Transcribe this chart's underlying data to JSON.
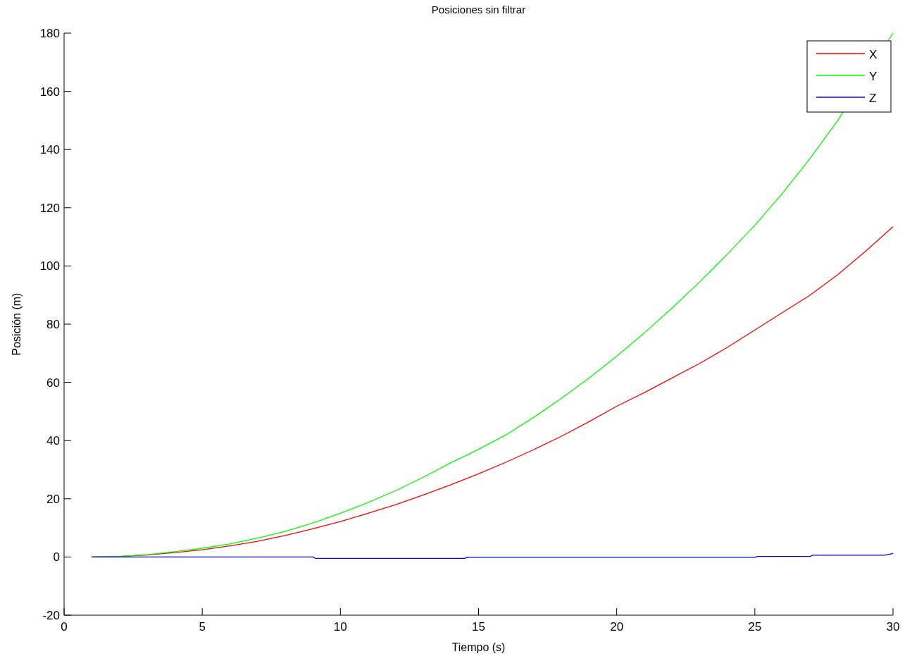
{
  "chart_data": {
    "type": "line",
    "title": "Posiciones sin filtrar",
    "xlabel": "Tiempo (s)",
    "ylabel": "Posición (m)",
    "x": [
      1,
      2,
      3,
      4,
      5,
      6,
      7,
      8,
      9,
      10,
      11,
      12,
      13,
      14,
      15,
      16,
      17,
      18,
      19,
      20,
      21,
      22,
      23,
      24,
      25,
      26,
      27,
      28,
      29,
      30
    ],
    "series": [
      {
        "name": "X",
        "color": "#ff0000",
        "values": [
          0,
          0.2,
          0.7,
          1.5,
          2.5,
          3.8,
          5.4,
          7.4,
          9.7,
          12.2,
          15,
          18,
          21.3,
          24.8,
          28.6,
          32.6,
          36.9,
          41.5,
          46.5,
          51.8,
          56.5,
          61.5,
          66.5,
          72,
          78,
          84,
          90,
          97,
          105,
          113.5
        ]
      },
      {
        "name": "Y",
        "color": "#00ff00",
        "x": [
          1,
          2,
          3,
          4,
          5,
          6,
          7,
          8,
          9,
          10,
          11,
          12,
          13,
          14,
          15,
          16,
          17,
          18,
          19,
          20,
          21,
          22,
          23,
          24,
          25,
          26,
          27,
          28,
          30
        ],
        "values": [
          0,
          0.2,
          0.8,
          1.8,
          3,
          4.5,
          6.5,
          8.8,
          11.7,
          15,
          18.7,
          22.8,
          27.4,
          32.4,
          37,
          42,
          48,
          54.5,
          61.5,
          69,
          77,
          85.5,
          94.5,
          104,
          114,
          125,
          137,
          150,
          180
        ]
      },
      {
        "name": "Z",
        "color": "#0000ff",
        "x": [
          1,
          9,
          9.1,
          14.5,
          14.6,
          25,
          25.1,
          27,
          27.1,
          29.7,
          30
        ],
        "values": [
          0,
          0,
          -0.5,
          -0.5,
          -0.1,
          -0.1,
          0.2,
          0.2,
          0.6,
          0.6,
          1.2
        ]
      }
    ],
    "xlim": [
      0,
      30
    ],
    "xticks": [
      0,
      5,
      10,
      15,
      20,
      25,
      30
    ],
    "ylim": [
      -20,
      180
    ],
    "yticks": [
      -20,
      0,
      20,
      40,
      60,
      80,
      100,
      120,
      140,
      160,
      180
    ],
    "grid": false,
    "legend": "top right",
    "marker": "none",
    "line_style": "solid"
  }
}
